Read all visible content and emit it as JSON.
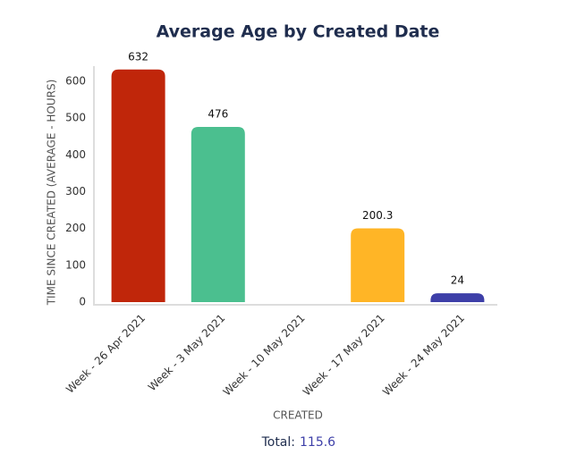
{
  "chart_data": {
    "type": "bar",
    "title": "Average Age by Created Date",
    "y_axis_label": "TIME SINCE CREATED (AVERAGE - HOURS)",
    "x_axis_label": "CREATED",
    "categories": [
      "Week - 26 Apr 2021",
      "Week - 3 May 2021",
      "Week - 10 May 2021",
      "Week - 17 May 2021",
      "Week - 24 May 2021"
    ],
    "values": [
      632,
      476,
      null,
      200.3,
      24
    ],
    "colors": [
      "#c0260a",
      "#4bbf8f",
      null,
      "#ffb526",
      "#3d3fa8"
    ],
    "ylim": [
      0,
      640
    ],
    "yticks": [
      0,
      100,
      200,
      300,
      400,
      500,
      600
    ],
    "grid": false,
    "total": {
      "label": "Total:",
      "value": 115.6
    }
  }
}
